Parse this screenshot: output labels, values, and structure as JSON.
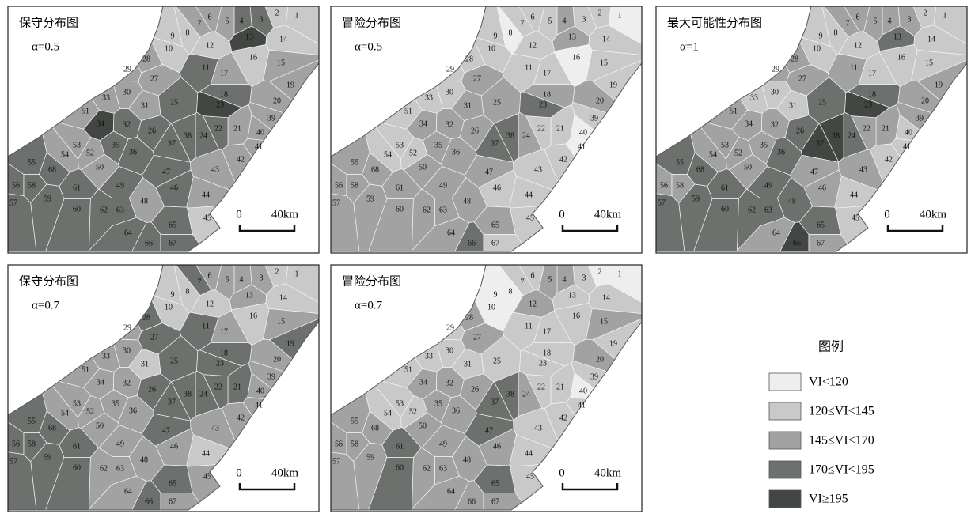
{
  "panels": [
    {
      "title": "保守分布图",
      "alpha": "α=0.5",
      "classes": [
        2,
        2,
        4,
        4,
        3,
        3,
        3,
        2,
        2,
        2,
        4,
        2,
        5,
        2,
        3,
        2,
        3,
        4,
        3,
        3,
        3,
        4,
        5,
        4,
        4,
        4,
        3,
        3,
        3,
        3,
        3,
        4,
        3,
        5,
        4,
        4,
        4,
        4,
        3,
        3,
        3,
        3,
        3,
        3,
        2,
        4,
        4,
        3,
        4,
        3,
        3,
        3,
        3,
        3,
        4,
        4,
        4,
        4,
        4,
        4,
        4,
        4,
        4,
        4,
        4,
        4,
        4,
        4
      ]
    },
    {
      "title": "冒险分布图",
      "alpha": "α=0.5",
      "classes": [
        1,
        2,
        2,
        3,
        2,
        2,
        2,
        1,
        2,
        2,
        2,
        2,
        3,
        2,
        2,
        1,
        2,
        3,
        2,
        3,
        2,
        2,
        4,
        3,
        3,
        3,
        3,
        2,
        2,
        2,
        3,
        3,
        2,
        3,
        3,
        3,
        4,
        4,
        2,
        1,
        1,
        2,
        2,
        2,
        2,
        2,
        3,
        3,
        3,
        3,
        2,
        2,
        2,
        2,
        3,
        3,
        3,
        3,
        3,
        3,
        3,
        3,
        3,
        3,
        3,
        4,
        2,
        3
      ]
    },
    {
      "title": "最大可能性分布图",
      "alpha": "α=1",
      "classes": [
        2,
        2,
        3,
        3,
        3,
        3,
        3,
        2,
        2,
        2,
        3,
        2,
        4,
        2,
        2,
        2,
        2,
        4,
        3,
        3,
        3,
        3,
        5,
        4,
        4,
        4,
        3,
        3,
        3,
        2,
        2,
        3,
        2,
        3,
        3,
        4,
        5,
        5,
        3,
        2,
        2,
        2,
        3,
        2,
        2,
        3,
        3,
        4,
        4,
        3,
        3,
        3,
        3,
        3,
        4,
        3,
        4,
        3,
        4,
        4,
        4,
        4,
        4,
        3,
        4,
        5,
        3,
        4
      ]
    },
    {
      "title": "保守分布图",
      "alpha": "α=0.7",
      "classes": [
        2,
        2,
        3,
        3,
        3,
        3,
        4,
        2,
        2,
        2,
        4,
        2,
        3,
        2,
        3,
        2,
        3,
        4,
        4,
        3,
        4,
        4,
        4,
        4,
        4,
        4,
        4,
        4,
        3,
        3,
        2,
        3,
        3,
        3,
        3,
        3,
        4,
        4,
        3,
        3,
        3,
        3,
        3,
        2,
        3,
        3,
        4,
        3,
        3,
        3,
        3,
        3,
        3,
        3,
        4,
        4,
        4,
        4,
        4,
        4,
        4,
        3,
        3,
        3,
        4,
        4,
        3,
        4
      ]
    },
    {
      "title": "冒险分布图",
      "alpha": "α=0.7",
      "classes": [
        1,
        1,
        2,
        3,
        3,
        2,
        2,
        1,
        1,
        1,
        2,
        3,
        2,
        2,
        3,
        2,
        2,
        2,
        2,
        3,
        2,
        2,
        2,
        3,
        2,
        3,
        3,
        3,
        2,
        2,
        2,
        3,
        2,
        3,
        3,
        3,
        4,
        4,
        2,
        1,
        2,
        2,
        2,
        2,
        2,
        3,
        4,
        3,
        3,
        3,
        2,
        2,
        2,
        2,
        3,
        3,
        3,
        3,
        3,
        4,
        4,
        3,
        3,
        3,
        4,
        3,
        3,
        3
      ]
    }
  ],
  "scale": {
    "zero": "0",
    "distance": "40km"
  },
  "regions": [
    "1",
    "2",
    "3",
    "4",
    "5",
    "6",
    "7",
    "8",
    "9",
    "10",
    "11",
    "12",
    "13",
    "14",
    "15",
    "16",
    "17",
    "18",
    "19",
    "20",
    "21",
    "22",
    "23",
    "24",
    "25",
    "26",
    "27",
    "28",
    "29",
    "30",
    "31",
    "32",
    "33",
    "34",
    "35",
    "36",
    "37",
    "38",
    "39",
    "40",
    "41",
    "42",
    "43",
    "44",
    "45",
    "46",
    "47",
    "48",
    "49",
    "50",
    "51",
    "52",
    "53",
    "54",
    "55",
    "56",
    "57",
    "58",
    "59",
    "60",
    "61",
    "62",
    "63",
    "64",
    "65",
    "66",
    "67",
    "68"
  ],
  "legend": {
    "title": "图例",
    "items": [
      {
        "label": "VI<120",
        "color": "#eeeeee"
      },
      {
        "label": "120≤VI<145",
        "color": "#c9c9c9"
      },
      {
        "label": "145≤VI<170",
        "color": "#a2a2a2"
      },
      {
        "label": "170≤VI<195",
        "color": "#6d716d"
      },
      {
        "label": "VI≥195",
        "color": "#434743"
      }
    ]
  }
}
